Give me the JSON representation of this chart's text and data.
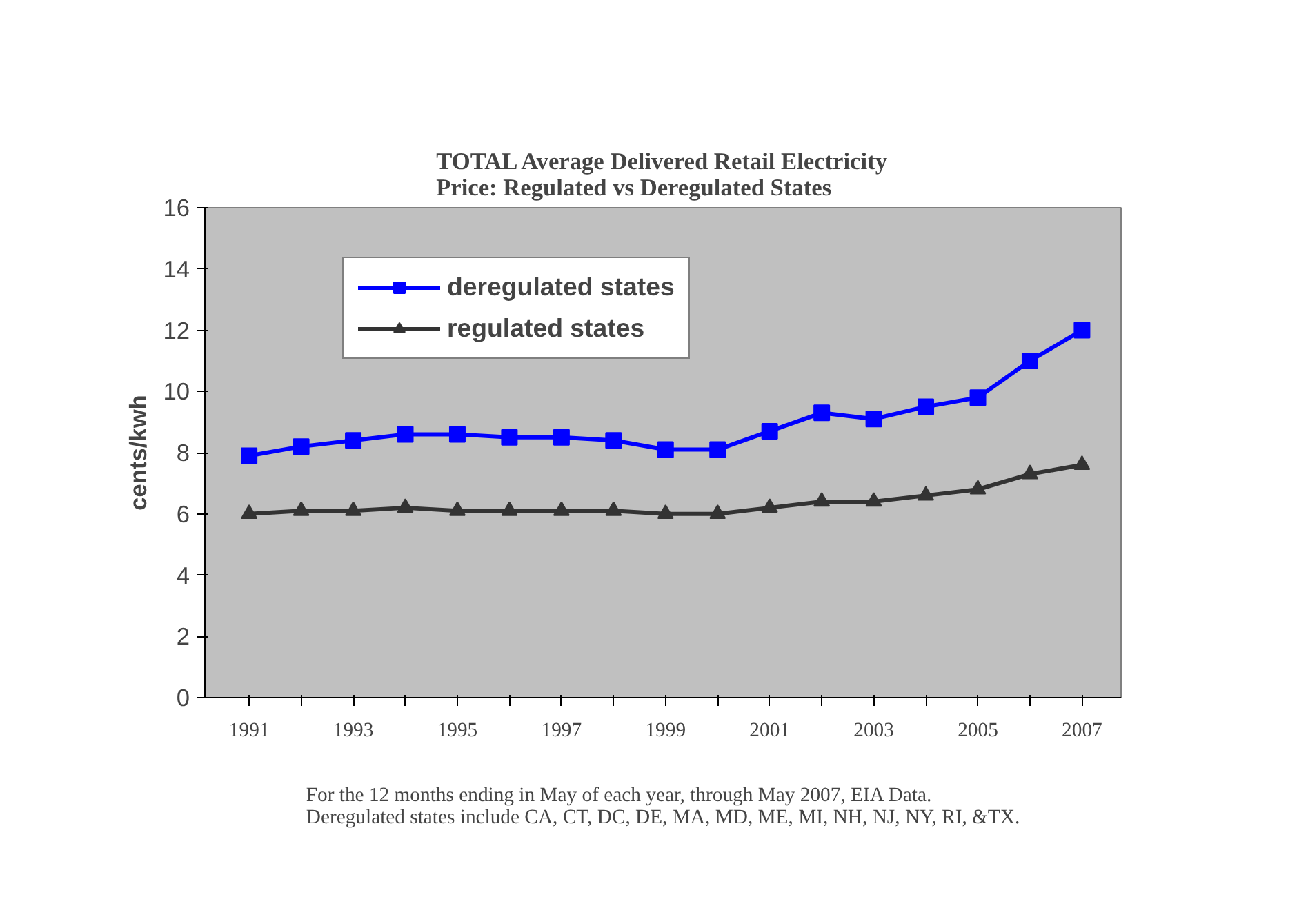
{
  "chart_data": {
    "type": "line",
    "title": "TOTAL Average Delivered Retail Electricity Price: Regulated vs Deregulated States",
    "ylabel": "cents/kwh",
    "categories": [
      "1991",
      null,
      "1993",
      null,
      "1995",
      null,
      "1997",
      null,
      "1999",
      null,
      "2001",
      null,
      "2003",
      null,
      "2005",
      null,
      "2007"
    ],
    "series": [
      {
        "name": "deregulated states",
        "color": "#0000ff",
        "marker": "square",
        "values": [
          7.9,
          8.2,
          8.4,
          8.6,
          8.6,
          8.5,
          8.5,
          8.4,
          8.1,
          8.1,
          8.7,
          9.3,
          9.1,
          9.5,
          9.8,
          11.0,
          12.0
        ]
      },
      {
        "name": "regulated states",
        "color": "#333333",
        "marker": "triangle",
        "values": [
          6.0,
          6.1,
          6.1,
          6.2,
          6.1,
          6.1,
          6.1,
          6.1,
          6.0,
          6.0,
          6.2,
          6.4,
          6.4,
          6.6,
          6.8,
          7.3,
          7.6
        ]
      }
    ],
    "ylim": [
      0,
      16
    ],
    "yticks": [
      0,
      2,
      4,
      6,
      8,
      10,
      12,
      14,
      16
    ],
    "grid": false,
    "legend": "top left",
    "line_style": "solid",
    "annotations": [
      "For the 12 months ending in May of each year, through May 2007, EIA Data. Deregulated states include CA, CT, DC, DE, MA, MD, ME, MI, NH, NJ, NY, RI, &TX."
    ]
  }
}
